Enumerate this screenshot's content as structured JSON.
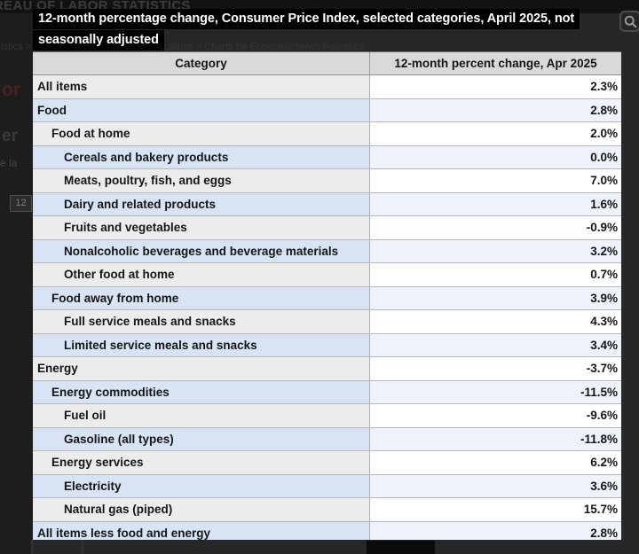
{
  "page": {
    "masthead": "REAU OF LABOR STATISTICS",
    "breadcrumb": "istics  >  Data Tools  >  Charts and Applications  >  Charts for Economic News Releases",
    "fragments": {
      "left1": "or",
      "left2": "er",
      "left3": "e la",
      "left4": "12"
    }
  },
  "title": {
    "line1": "12-month percentage change, Consumer Price Index, selected categories, April 2025, not",
    "line2": "seasonally adjusted"
  },
  "search": {
    "icon": "magnifier"
  },
  "colors": {
    "title_bg": "#000000",
    "title_fg": "#ffffff",
    "header_bg": "#d9d9d9",
    "row_gray_category": "#ececec",
    "row_gray_value": "#ffffff",
    "row_blue_category": "#d8e4f4",
    "row_blue_value": "#eef3fb",
    "overlay_bg": "#272727"
  },
  "table": {
    "columns": [
      "Category",
      "12-month percent change, Apr 2025"
    ],
    "rows": [
      {
        "label": "All items",
        "value": "2.3%",
        "indent": 0
      },
      {
        "label": "Food",
        "value": "2.8%",
        "indent": 0
      },
      {
        "label": "Food at home",
        "value": "2.0%",
        "indent": 1
      },
      {
        "label": "Cereals and bakery products",
        "value": "0.0%",
        "indent": 2
      },
      {
        "label": "Meats, poultry, fish, and eggs",
        "value": "7.0%",
        "indent": 2
      },
      {
        "label": "Dairy and related products",
        "value": "1.6%",
        "indent": 2
      },
      {
        "label": "Fruits and vegetables",
        "value": "-0.9%",
        "indent": 2
      },
      {
        "label": "Nonalcoholic beverages and beverage materials",
        "value": "3.2%",
        "indent": 2
      },
      {
        "label": "Other food at home",
        "value": "0.7%",
        "indent": 2
      },
      {
        "label": "Food away from home",
        "value": "3.9%",
        "indent": 1
      },
      {
        "label": "Full service meals and snacks",
        "value": "4.3%",
        "indent": 2
      },
      {
        "label": "Limited service meals and snacks",
        "value": "3.4%",
        "indent": 2
      },
      {
        "label": "Energy",
        "value": "-3.7%",
        "indent": 0
      },
      {
        "label": "Energy commodities",
        "value": "-11.5%",
        "indent": 1
      },
      {
        "label": "Fuel oil",
        "value": "-9.6%",
        "indent": 2
      },
      {
        "label": "Gasoline (all types)",
        "value": "-11.8%",
        "indent": 2
      },
      {
        "label": "Energy services",
        "value": "6.2%",
        "indent": 1
      },
      {
        "label": "Electricity",
        "value": "3.6%",
        "indent": 2
      },
      {
        "label": "Natural gas (piped)",
        "value": "15.7%",
        "indent": 2
      },
      {
        "label": "All items less food and energy",
        "value": "2.8%",
        "indent": 0
      }
    ]
  }
}
